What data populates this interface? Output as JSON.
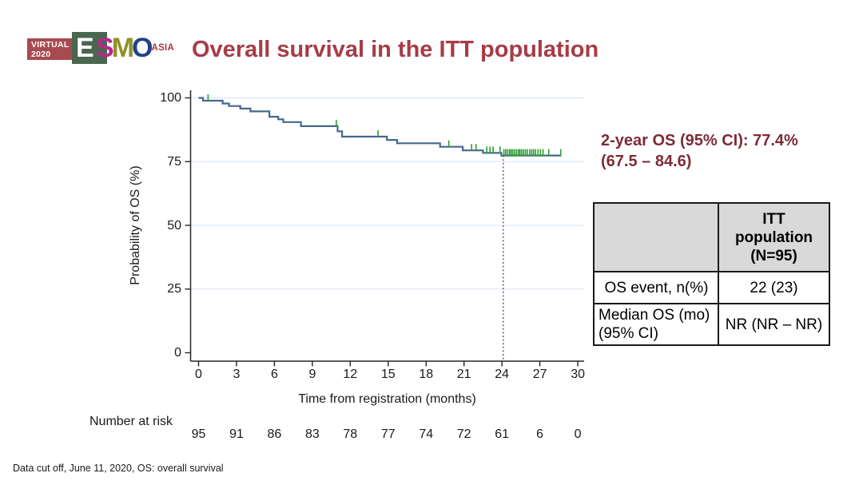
{
  "logo": {
    "virtual_line1": "VIRTUAL",
    "virtual_line2": "2020",
    "esmo_e": "E",
    "esmo_s": "S",
    "esmo_m": "M",
    "esmo_o": "O",
    "asia": "ASIA"
  },
  "header": {
    "title": "Overall survival in the ITT population"
  },
  "annotation": {
    "line1": "2-year OS (95% CI): 77.4%",
    "line2": "(67.5 – 84.6)"
  },
  "results_table": {
    "header_col2": "ITT\npopulation\n(N=95)",
    "rows": [
      {
        "label": "OS event, n(%)",
        "value": "22 (23)"
      },
      {
        "label": "Median OS (mo)\n(95% CI)",
        "value": "NR (NR – NR)"
      }
    ]
  },
  "footer": {
    "note": "Data cut off, June 11, 2020, OS: overall survival"
  },
  "colors": {
    "title_red": "#a63c46",
    "annotation_maroon": "#7d2b36",
    "curve_blue": "#46688e",
    "censor_green": "#2e9d32",
    "gridline": "#dce7f3",
    "table_header_bg": "#d9d9d9",
    "logo_red": "#a84a52",
    "logo_green": "#49664f",
    "logo_magenta": "#b5298e",
    "logo_olive": "#8f9027",
    "logo_blue": "#21418d"
  },
  "chart_data": {
    "type": "line",
    "subtype": "kaplan-meier-step",
    "title": "Overall survival in the ITT population",
    "xlabel": "Time from registration (months)",
    "ylabel": "Probability of OS (%)",
    "xlim": [
      0,
      30
    ],
    "ylim": [
      0,
      100
    ],
    "x_ticks": [
      0,
      3,
      6,
      9,
      12,
      15,
      18,
      21,
      24,
      27,
      30
    ],
    "y_ticks": [
      0,
      25,
      50,
      75,
      100
    ],
    "grid": "horizontal light gridlines at 25/50/75/100",
    "legend_position": "none",
    "series": [
      {
        "name": "ITT population",
        "color": "#46688e",
        "end_time": 28.7,
        "steps": [
          [
            0,
            100
          ],
          [
            0.35,
            98.9
          ],
          [
            1.9,
            97.8
          ],
          [
            2.4,
            96.8
          ],
          [
            3.3,
            95.8
          ],
          [
            4.1,
            94.7
          ],
          [
            5.6,
            92.6
          ],
          [
            6.3,
            91.6
          ],
          [
            6.7,
            90.5
          ],
          [
            8.1,
            88.9
          ],
          [
            11.0,
            86.9
          ],
          [
            11.35,
            84.8
          ],
          [
            14.9,
            83.5
          ],
          [
            15.7,
            82.2
          ],
          [
            19.1,
            80.8
          ],
          [
            20.9,
            79.4
          ],
          [
            22.5,
            78.4
          ],
          [
            23.95,
            77.4
          ]
        ]
      }
    ],
    "censor_marks": {
      "color": "#2e9d32",
      "points": [
        [
          0.75,
          98.9
        ],
        [
          10.9,
          88.9
        ],
        [
          14.2,
          84.8
        ],
        [
          19.8,
          80.8
        ],
        [
          21.6,
          79.4
        ],
        [
          21.95,
          79.4
        ],
        [
          22.8,
          78.4
        ],
        [
          23.05,
          78.4
        ],
        [
          23.3,
          78.4
        ],
        [
          23.85,
          78.4
        ],
        [
          24.15,
          77.4
        ],
        [
          24.3,
          77.4
        ],
        [
          24.45,
          77.4
        ],
        [
          24.6,
          77.4
        ],
        [
          24.72,
          77.4
        ],
        [
          24.85,
          77.4
        ],
        [
          25.0,
          77.4
        ],
        [
          25.15,
          77.4
        ],
        [
          25.3,
          77.4
        ],
        [
          25.42,
          77.4
        ],
        [
          25.55,
          77.4
        ],
        [
          25.7,
          77.4
        ],
        [
          25.85,
          77.4
        ],
        [
          26.0,
          77.4
        ],
        [
          26.2,
          77.4
        ],
        [
          26.35,
          77.4
        ],
        [
          26.5,
          77.4
        ],
        [
          26.65,
          77.4
        ],
        [
          26.85,
          77.4
        ],
        [
          27.05,
          77.4
        ],
        [
          27.25,
          77.4
        ],
        [
          27.7,
          77.4
        ],
        [
          28.65,
          77.4
        ]
      ]
    },
    "reference_line": {
      "x": 24.1,
      "style": "dotted",
      "color": "#555555"
    },
    "two_year_os": {
      "estimate_pct": 77.4,
      "ci95": [
        67.5,
        84.6
      ]
    },
    "number_at_risk": {
      "label": "Number at risk",
      "times": [
        0,
        3,
        6,
        9,
        12,
        15,
        18,
        21,
        24,
        27,
        30
      ],
      "values": [
        95,
        91,
        86,
        83,
        78,
        77,
        74,
        72,
        61,
        6,
        0
      ]
    }
  }
}
